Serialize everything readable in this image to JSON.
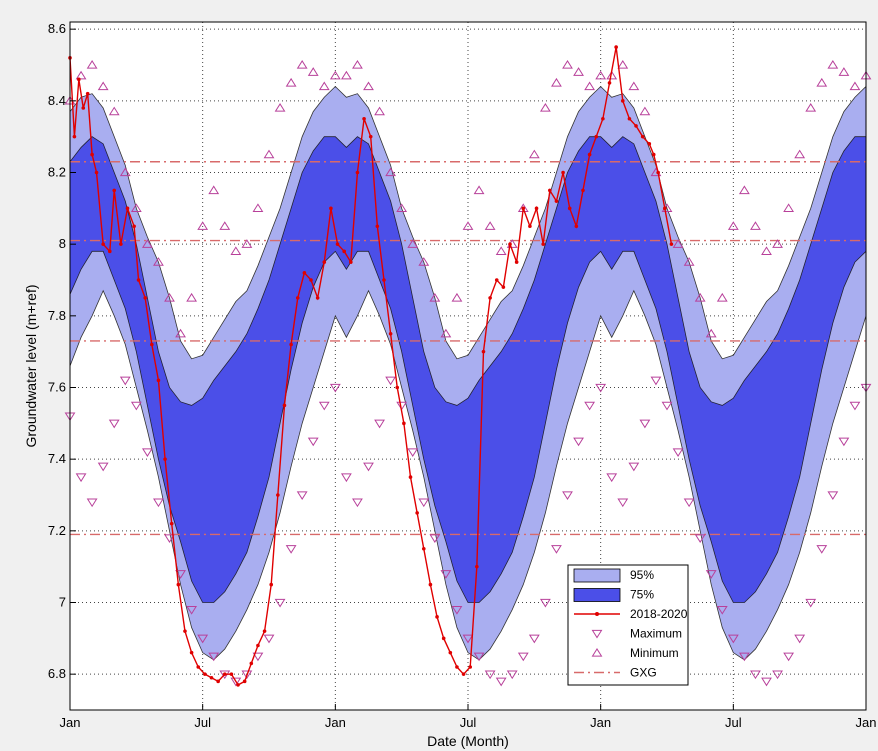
{
  "chart_data": {
    "type": "area",
    "xlabel": "Date (Month)",
    "ylabel": "Groundwater level (m+ref)",
    "xlim": [
      0,
      36
    ],
    "ylim": [
      6.7,
      8.62
    ],
    "x_ticks": [
      {
        "x": 0,
        "label": "Jan"
      },
      {
        "x": 6,
        "label": "Jul"
      },
      {
        "x": 12,
        "label": "Jan"
      },
      {
        "x": 18,
        "label": "Jul"
      },
      {
        "x": 24,
        "label": "Jan"
      },
      {
        "x": 30,
        "label": "Jul"
      },
      {
        "x": 36,
        "label": "Jan"
      }
    ],
    "y_ticks": [
      6.8,
      7,
      7.2,
      7.4,
      7.6,
      7.8,
      8,
      8.2,
      8.4,
      8.6
    ],
    "y_tick_labels": [
      "6.8",
      "7",
      "7.2",
      "7.4",
      "7.6",
      "7.8",
      "8",
      "8.2",
      "8.4",
      "8.6"
    ],
    "grid": true,
    "legend_position": "bottom-right",
    "colors": {
      "band95": "#a9aef0",
      "band75": "#4b4fe8",
      "observed": "#e00000",
      "maximum": "#b8409a",
      "minimum": "#b8409a",
      "gxg": "#d86a6a"
    },
    "legend": [
      {
        "label": "95%",
        "kind": "patch95"
      },
      {
        "label": "75%",
        "kind": "patch75"
      },
      {
        "label": "2018-2020",
        "kind": "line"
      },
      {
        "label": "Maximum",
        "kind": "tri-down"
      },
      {
        "label": "Minimum",
        "kind": "tri-up"
      },
      {
        "label": "GXG",
        "kind": "dashdot"
      }
    ],
    "gxg_levels": [
      8.23,
      8.01,
      7.73,
      7.19
    ],
    "band95_x": [
      0,
      0.5,
      1,
      1.5,
      2,
      2.5,
      3,
      3.5,
      4,
      4.5,
      5,
      5.5,
      6,
      6.5,
      7,
      7.5,
      8,
      8.5,
      9,
      9.5,
      10,
      10.5,
      11,
      11.5,
      12
    ],
    "band95_upper": [
      8.37,
      8.41,
      8.42,
      8.38,
      8.3,
      8.22,
      8.1,
      8.02,
      7.95,
      7.85,
      7.73,
      7.68,
      7.69,
      7.74,
      7.79,
      7.84,
      7.87,
      7.94,
      8.02,
      8.1,
      8.2,
      8.3,
      8.37,
      8.41,
      8.44
    ],
    "band95_lower": [
      7.66,
      7.74,
      7.8,
      7.87,
      7.8,
      7.72,
      7.6,
      7.48,
      7.35,
      7.2,
      7.05,
      6.93,
      6.86,
      6.84,
      6.87,
      6.92,
      6.98,
      7.05,
      7.14,
      7.25,
      7.38,
      7.5,
      7.6,
      7.7,
      7.8
    ],
    "band75_upper": [
      8.23,
      8.27,
      8.3,
      8.28,
      8.2,
      8.12,
      8.0,
      7.85,
      7.7,
      7.6,
      7.56,
      7.55,
      7.57,
      7.62,
      7.66,
      7.7,
      7.75,
      7.82,
      7.9,
      8.0,
      8.1,
      8.2,
      8.26,
      8.3,
      8.3
    ],
    "band75_lower": [
      7.86,
      7.93,
      7.98,
      7.98,
      7.9,
      7.82,
      7.7,
      7.55,
      7.4,
      7.27,
      7.17,
      7.06,
      7.0,
      7.0,
      7.03,
      7.08,
      7.14,
      7.24,
      7.35,
      7.5,
      7.65,
      7.78,
      7.88,
      7.95,
      7.98
    ],
    "maximum_x": [
      0,
      0.5,
      1,
      1.5,
      2,
      2.5,
      3,
      3.5,
      4,
      4.5,
      5,
      5.5,
      6,
      6.5,
      7,
      7.5,
      8,
      8.5,
      9,
      9.5,
      10,
      10.5,
      11,
      11.5,
      12
    ],
    "maximum_y": [
      7.52,
      7.35,
      7.28,
      7.38,
      7.5,
      7.62,
      7.55,
      7.42,
      7.28,
      7.18,
      7.08,
      6.98,
      6.9,
      6.85,
      6.8,
      6.78,
      6.8,
      6.85,
      6.9,
      7.0,
      7.15,
      7.3,
      7.45,
      7.55,
      7.6
    ],
    "minimum_x": [
      0,
      0.5,
      1,
      1.5,
      2,
      2.5,
      3,
      3.5,
      4,
      4.5,
      5,
      5.5,
      6,
      6.5,
      7,
      7.5,
      8,
      8.5,
      9,
      9.5,
      10,
      10.5,
      11,
      11.5,
      12
    ],
    "minimum_y": [
      8.4,
      8.47,
      8.5,
      8.44,
      8.37,
      8.2,
      8.1,
      8.0,
      7.95,
      7.85,
      7.75,
      7.85,
      8.05,
      8.15,
      8.05,
      7.98,
      8.0,
      8.1,
      8.25,
      8.38,
      8.45,
      8.5,
      8.48,
      8.44,
      8.47
    ],
    "series": [
      {
        "name": "2018-2020",
        "x": [
          0,
          0.2,
          0.4,
          0.6,
          0.8,
          1.0,
          1.2,
          1.5,
          1.8,
          2.0,
          2.3,
          2.6,
          2.9,
          3.1,
          3.4,
          3.7,
          4.0,
          4.3,
          4.6,
          4.9,
          5.2,
          5.5,
          5.8,
          6.1,
          6.4,
          6.7,
          7.0,
          7.3,
          7.6,
          7.9,
          8.2,
          8.5,
          8.8,
          9.1,
          9.4,
          9.7,
          10.0,
          10.3,
          10.6,
          10.9,
          11.2,
          11.5,
          11.8,
          12.1,
          12.4,
          12.7,
          13.0,
          13.3,
          13.6,
          13.9,
          14.2,
          14.5,
          14.8,
          15.1,
          15.4,
          15.7,
          16.0,
          16.3,
          16.6,
          16.9,
          17.2,
          17.5,
          17.8,
          18.1,
          18.4,
          18.7,
          19.0,
          19.3,
          19.6,
          19.9,
          20.2,
          20.5,
          20.8,
          21.1,
          21.4,
          21.7,
          22.0,
          22.3,
          22.6,
          22.9,
          23.2,
          23.5,
          23.8,
          24.1,
          24.4,
          24.7,
          25.0,
          25.3,
          25.6,
          25.9,
          26.2,
          26.4,
          26.6,
          26.9,
          27.2
        ],
        "y": [
          8.52,
          8.3,
          8.46,
          8.38,
          8.42,
          8.25,
          8.2,
          8.0,
          7.98,
          8.15,
          8.0,
          8.1,
          8.05,
          7.9,
          7.85,
          7.72,
          7.62,
          7.4,
          7.22,
          7.05,
          6.92,
          6.86,
          6.82,
          6.8,
          6.79,
          6.78,
          6.8,
          6.8,
          6.77,
          6.78,
          6.83,
          6.88,
          6.92,
          7.05,
          7.3,
          7.55,
          7.72,
          7.85,
          7.92,
          7.9,
          7.85,
          7.95,
          8.1,
          8.0,
          7.98,
          7.95,
          8.2,
          8.35,
          8.3,
          8.05,
          7.9,
          7.75,
          7.6,
          7.5,
          7.35,
          7.25,
          7.15,
          7.05,
          6.96,
          6.9,
          6.86,
          6.82,
          6.8,
          6.82,
          7.1,
          7.7,
          7.85,
          7.9,
          7.88,
          8.0,
          7.95,
          8.1,
          8.05,
          8.1,
          8.0,
          8.15,
          8.12,
          8.2,
          8.1,
          8.05,
          8.15,
          8.25,
          8.3,
          8.35,
          8.45,
          8.55,
          8.4,
          8.35,
          8.33,
          8.3,
          8.28,
          8.25,
          8.2,
          8.1,
          8.0
        ]
      }
    ]
  }
}
